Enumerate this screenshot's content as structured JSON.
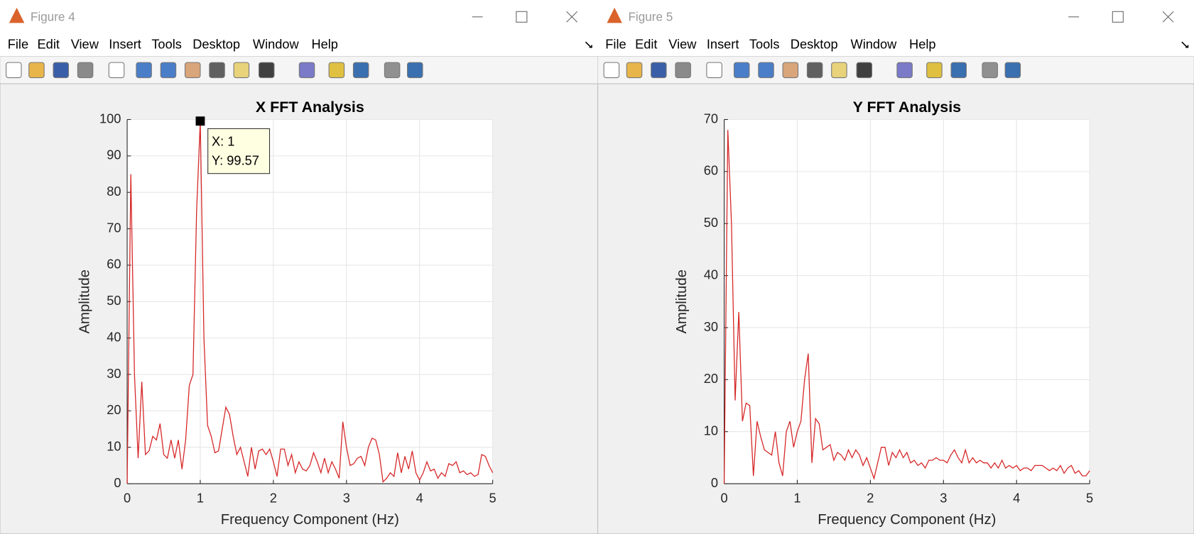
{
  "windows": [
    {
      "title": "Figure 4",
      "menu": [
        "File",
        "Edit",
        "View",
        "Insert",
        "Tools",
        "Desktop",
        "Window",
        "Help"
      ]
    },
    {
      "title": "Figure 5",
      "menu": [
        "File",
        "Edit",
        "View",
        "Insert",
        "Tools",
        "Desktop",
        "Window",
        "Help"
      ]
    }
  ],
  "chart_data": [
    {
      "type": "line",
      "title": "X FFT Analysis",
      "x_label": "Frequency Component (Hz)",
      "y_label": "Amplitude",
      "x": [
        0,
        0.05,
        0.1,
        0.15,
        0.2,
        0.25,
        0.3,
        0.35,
        0.4,
        0.45,
        0.5,
        0.55,
        0.6,
        0.65,
        0.7,
        0.75,
        0.8,
        0.85,
        0.9,
        0.95,
        1,
        1.05,
        1.1,
        1.15,
        1.2,
        1.25,
        1.3,
        1.35,
        1.4,
        1.45,
        1.5,
        1.55,
        1.6,
        1.65,
        1.7,
        1.75,
        1.8,
        1.85,
        1.9,
        1.95,
        2,
        2.05,
        2.1,
        2.15,
        2.2,
        2.25,
        2.3,
        2.35,
        2.4,
        2.45,
        2.5,
        2.55,
        2.6,
        2.65,
        2.7,
        2.75,
        2.8,
        2.85,
        2.9,
        2.95,
        3,
        3.05,
        3.1,
        3.15,
        3.2,
        3.25,
        3.3,
        3.35,
        3.4,
        3.45,
        3.5,
        3.55,
        3.6,
        3.65,
        3.7,
        3.75,
        3.8,
        3.85,
        3.9,
        3.95,
        4,
        4.05,
        4.1,
        4.15,
        4.2,
        4.25,
        4.3,
        4.35,
        4.4,
        4.45,
        4.5,
        4.55,
        4.6,
        4.65,
        4.7,
        4.75,
        4.8,
        4.85,
        4.9,
        4.95,
        5
      ],
      "series": [
        {
          "color": "#d62728",
          "values": [
            0,
            85,
            30,
            7,
            28,
            8,
            9,
            13,
            12,
            16.5,
            8,
            7,
            12,
            7,
            12,
            4,
            12,
            27,
            30,
            75,
            99.57,
            40,
            16,
            13,
            8.5,
            9,
            15,
            21,
            19,
            13,
            8,
            10,
            6,
            2,
            10,
            4,
            9,
            9.5,
            8,
            9.5,
            6,
            2,
            9.5,
            9.5,
            5,
            8,
            3,
            6,
            4,
            3.5,
            5,
            8.5,
            6,
            3,
            7,
            3,
            6,
            4,
            1.5,
            17,
            10,
            5,
            5.5,
            7,
            7.5,
            5,
            10,
            12.5,
            12,
            8,
            0.5,
            1.5,
            3,
            2,
            8.5,
            3,
            7.5,
            4,
            9,
            3,
            1,
            3,
            6,
            3.5,
            4,
            1.5,
            3,
            2,
            5.5,
            5,
            6,
            3,
            3.5,
            2.5,
            3,
            2,
            2.5,
            8,
            7.5,
            5,
            3
          ]
        }
      ],
      "xlim": [
        0,
        5
      ],
      "xticks": [
        0,
        1,
        2,
        3,
        4,
        5
      ],
      "ylim": [
        0,
        100
      ],
      "yticks": [
        0,
        10,
        20,
        30,
        40,
        50,
        60,
        70,
        80,
        90,
        100
      ],
      "grid": true,
      "datatip": {
        "x": 1,
        "y": 99.57,
        "labels": [
          "X: 1",
          "Y: 99.57"
        ]
      }
    },
    {
      "type": "line",
      "title": "Y FFT Analysis",
      "x_label": "Frequency Component (Hz)",
      "y_label": "Amplitude",
      "x": [
        0,
        0.05,
        0.1,
        0.15,
        0.2,
        0.25,
        0.3,
        0.35,
        0.4,
        0.45,
        0.5,
        0.55,
        0.6,
        0.65,
        0.7,
        0.75,
        0.8,
        0.85,
        0.9,
        0.95,
        1,
        1.05,
        1.1,
        1.15,
        1.2,
        1.25,
        1.3,
        1.35,
        1.4,
        1.45,
        1.5,
        1.55,
        1.6,
        1.65,
        1.7,
        1.75,
        1.8,
        1.85,
        1.9,
        1.95,
        2,
        2.05,
        2.1,
        2.15,
        2.2,
        2.25,
        2.3,
        2.35,
        2.4,
        2.45,
        2.5,
        2.55,
        2.6,
        2.65,
        2.7,
        2.75,
        2.8,
        2.85,
        2.9,
        2.95,
        3,
        3.05,
        3.1,
        3.15,
        3.2,
        3.25,
        3.3,
        3.35,
        3.4,
        3.45,
        3.5,
        3.55,
        3.6,
        3.65,
        3.7,
        3.75,
        3.8,
        3.85,
        3.9,
        3.95,
        4,
        4.05,
        4.1,
        4.15,
        4.2,
        4.25,
        4.3,
        4.35,
        4.4,
        4.45,
        4.5,
        4.55,
        4.6,
        4.65,
        4.7,
        4.75,
        4.8,
        4.85,
        4.9,
        4.95,
        5
      ],
      "series": [
        {
          "color": "#d62728",
          "values": [
            0,
            68,
            50,
            16,
            33,
            12,
            15.5,
            15,
            1.5,
            12,
            9,
            6.5,
            6,
            5.5,
            10,
            4,
            1.5,
            10,
            12,
            7,
            10,
            12,
            20,
            25,
            4,
            12.5,
            11.5,
            6.5,
            7,
            7.5,
            4.5,
            6,
            5.5,
            4.5,
            6.5,
            5,
            6.5,
            5.5,
            3.5,
            5,
            3,
            1,
            4,
            7,
            7,
            3.5,
            6,
            5,
            6.5,
            5,
            6,
            4,
            4.5,
            3.5,
            4,
            3,
            4.5,
            4.5,
            5,
            4.5,
            4.5,
            4,
            5.5,
            6.5,
            5,
            4,
            6.5,
            4,
            5,
            4,
            4.5,
            4,
            4,
            3,
            4,
            3,
            4.5,
            3,
            3.5,
            3,
            3.5,
            2.5,
            3,
            3,
            2.5,
            3.5,
            3.5,
            3.5,
            3,
            2.5,
            3,
            2.5,
            3.5,
            2,
            3,
            3.5,
            2,
            2.5,
            1.5,
            1.5,
            2.5
          ]
        }
      ],
      "xlim": [
        0,
        5
      ],
      "xticks": [
        0,
        1,
        2,
        3,
        4,
        5
      ],
      "ylim": [
        0,
        70
      ],
      "yticks": [
        0,
        10,
        20,
        30,
        40,
        50,
        60,
        70
      ],
      "grid": true
    }
  ]
}
